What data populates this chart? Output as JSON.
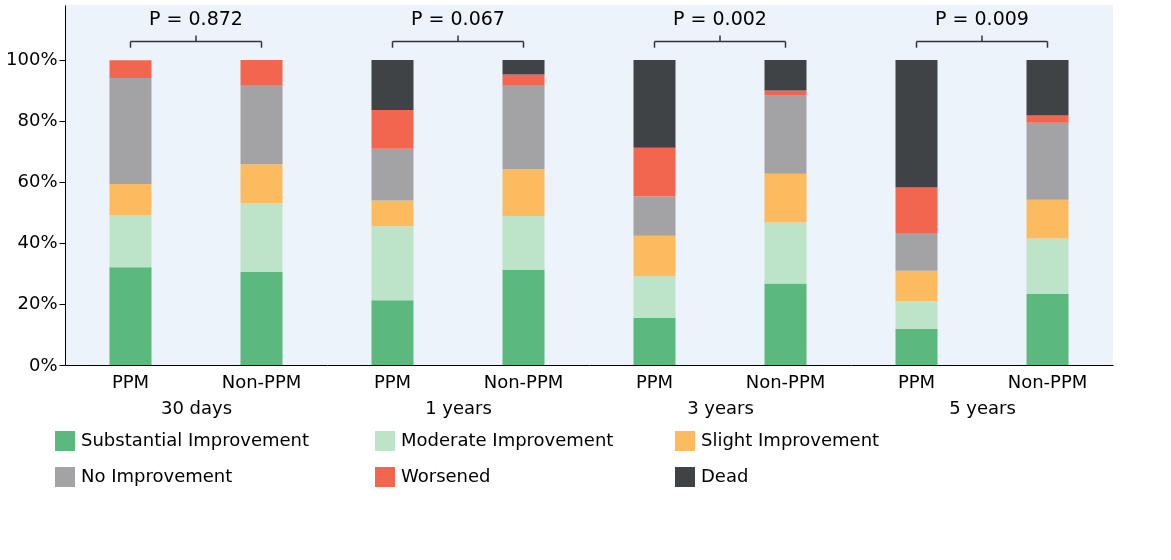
{
  "chart_data": [
    {
      "type": "bar",
      "stacked": true,
      "categories": [
        "PPM",
        "Non-PPM"
      ],
      "xlabel": "30 days",
      "ylim": [
        0,
        118
      ],
      "yticks": [
        {
          "value": 0,
          "label": "0%"
        },
        {
          "value": 20,
          "label": "20%"
        },
        {
          "value": 40,
          "label": "40%"
        },
        {
          "value": 60,
          "label": "60%"
        },
        {
          "value": 80,
          "label": "80%"
        },
        {
          "value": 100,
          "label": "100%"
        }
      ],
      "annotations": [
        "P = 0.872"
      ],
      "legend": "bottom",
      "grid": false,
      "series": [
        {
          "name": "Substantial Improvement",
          "color": "#5cb97e",
          "values": [
            32,
            30.6
          ]
        },
        {
          "name": "Moderate Improvement",
          "color": "#bde3c9",
          "values": [
            17,
            22.4
          ]
        },
        {
          "name": "Slight Improvement",
          "color": "#fdbb5f",
          "values": [
            10.3,
            12.8
          ]
        },
        {
          "name": "No Improvement",
          "color": "#a3a3a5",
          "values": [
            34.8,
            25.7
          ]
        },
        {
          "name": "Worsened",
          "color": "#f26650",
          "values": [
            5.8,
            8.5
          ]
        },
        {
          "name": "Dead",
          "color": "#404346",
          "values": [
            0,
            0
          ]
        }
      ]
    },
    {
      "type": "bar",
      "stacked": true,
      "categories": [
        "PPM",
        "Non-PPM"
      ],
      "xlabel": "1 years",
      "ylim": [
        0,
        118
      ],
      "tick_labels": "x",
      "annotations": [
        "P = 0.067"
      ],
      "grid": false,
      "series": [
        {
          "color": "#5cb97e",
          "values": [
            21.2,
            31.2
          ]
        },
        {
          "color": "#bde3c9",
          "values": [
            24.3,
            17.6
          ]
        },
        {
          "color": "#fdbb5f",
          "values": [
            8.4,
            15.4
          ]
        },
        {
          "color": "#a3a3a5",
          "values": [
            17,
            27.3
          ]
        },
        {
          "color": "#f26650",
          "values": [
            12.7,
            3.7
          ]
        },
        {
          "color": "#404346",
          "values": [
            16.4,
            4.8
          ]
        }
      ]
    },
    {
      "type": "bar",
      "stacked": true,
      "categories": [
        "PPM",
        "Non-PPM"
      ],
      "xlabel": "3 years",
      "ylim": [
        0,
        118
      ],
      "tick_labels": "x",
      "annotations": [
        "P = 0.002"
      ],
      "grid": false,
      "series": [
        {
          "color": "#5cb97e",
          "values": [
            15.5,
            26.7
          ]
        },
        {
          "color": "#bde3c9",
          "values": [
            13.6,
            20
          ]
        },
        {
          "color": "#fdbb5f",
          "values": [
            13.3,
            16
          ]
        },
        {
          "color": "#a3a3a5",
          "values": [
            12.8,
            25.8
          ]
        },
        {
          "color": "#f26650",
          "values": [
            16,
            1.5
          ]
        },
        {
          "color": "#404346",
          "values": [
            28.8,
            10
          ]
        }
      ]
    },
    {
      "type": "bar",
      "stacked": true,
      "categories": [
        "PPM",
        "Non-PPM"
      ],
      "xlabel": "5 years",
      "ylim": [
        0,
        118
      ],
      "tick_labels": "x",
      "annotations": [
        "P = 0.009"
      ],
      "grid": false,
      "series": [
        {
          "color": "#5cb97e",
          "values": [
            11.8,
            23.3
          ]
        },
        {
          "color": "#bde3c9",
          "values": [
            9.1,
            18.2
          ]
        },
        {
          "color": "#fdbb5f",
          "values": [
            10,
            12.7
          ]
        },
        {
          "color": "#a3a3a5",
          "values": [
            12.4,
            25.2
          ]
        },
        {
          "color": "#f26650",
          "values": [
            14.9,
            2.4
          ]
        },
        {
          "color": "#404346",
          "values": [
            41.8,
            18.2
          ]
        }
      ]
    }
  ]
}
